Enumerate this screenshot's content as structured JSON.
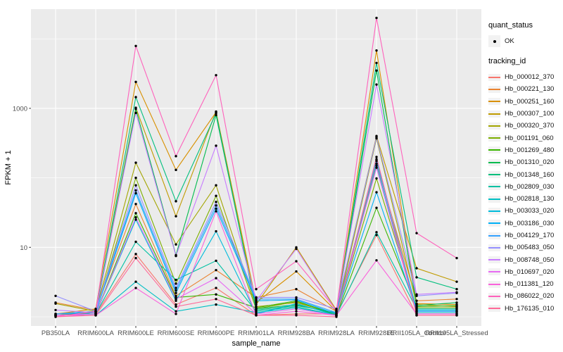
{
  "figure": {
    "panel_bg": "#EBEBEB",
    "grid_color": "#FFFFFF",
    "tick_text_color": "#4D4D4D",
    "title_text_color": "#000000",
    "point_color": "#000000",
    "legend_key_bg": "#F2F2F2"
  },
  "axes": {
    "x_title": "sample_name",
    "y_title": "FPKM + 1",
    "y_tick_labels": [
      "10",
      "1000"
    ],
    "y_tick_values": [
      10,
      1000
    ],
    "y_minor_values": [
      1,
      100,
      10000
    ]
  },
  "legend": {
    "quant_status": {
      "title": "quant_status",
      "items": [
        {
          "label": "OK",
          "symbol": "point"
        }
      ]
    },
    "tracking_id": {
      "title": "tracking_id"
    }
  },
  "chart_data": {
    "type": "line",
    "title": "",
    "xlabel": "sample_name",
    "ylabel": "FPKM + 1",
    "y_scale": "log10",
    "ylim": [
      1,
      30000
    ],
    "grid": true,
    "legend_position": "right",
    "point_marker": "black dot (quant_status OK)",
    "categories": [
      "PB350LA",
      "RRIM600LA",
      "RRIM600LE",
      "RRIM600SE",
      "RRIM600PE",
      "RRIM901LA",
      "RRIM928BA",
      "RRIM928LA",
      "RRIM928LE",
      "RRII105LA_Control",
      "RRII105LA_Stressed"
    ],
    "series": [
      {
        "name": "Hb_000012_370",
        "color": "#F8766D",
        "values": [
          1.1,
          1.1,
          8,
          1.5,
          2.6,
          1.05,
          1.1,
          1.1,
          15,
          1.05,
          1.05
        ]
      },
      {
        "name": "Hb_000221_130",
        "color": "#EA8331",
        "values": [
          1.6,
          1.25,
          42,
          2.0,
          4.7,
          1.9,
          2.5,
          1.2,
          160,
          1.7,
          1.8
        ]
      },
      {
        "name": "Hb_000251_160",
        "color": "#D89000",
        "values": [
          1.1,
          1.3,
          2400,
          130,
          880,
          1.6,
          4.5,
          1.2,
          6800,
          1.55,
          1.5
        ]
      },
      {
        "name": "Hb_000307_100",
        "color": "#C09B00",
        "values": [
          1.1,
          1.2,
          1020,
          28,
          900,
          1.5,
          10,
          1.25,
          400,
          5.0,
          3.2
        ]
      },
      {
        "name": "Hb_000320_370",
        "color": "#A3A500",
        "values": [
          1.55,
          1.2,
          165,
          11,
          78,
          1.4,
          1.6,
          1.1,
          370,
          1.5,
          1.4
        ]
      },
      {
        "name": "Hb_001191_060",
        "color": "#7CAE00",
        "values": [
          1.05,
          1.15,
          100,
          3.0,
          55,
          1.3,
          1.65,
          1.1,
          98,
          1.35,
          1.35
        ]
      },
      {
        "name": "Hb_001269_480",
        "color": "#39B600",
        "values": [
          1.05,
          1.1,
          31,
          1.9,
          2.1,
          1.35,
          1.7,
          1.05,
          37,
          1.4,
          1.45
        ]
      },
      {
        "name": "Hb_001310_020",
        "color": "#00BB4E",
        "values": [
          1.05,
          1.1,
          980,
          7.7,
          800,
          1.3,
          1.5,
          1.1,
          3500,
          1.45,
          1.6
        ]
      },
      {
        "name": "Hb_001348_160",
        "color": "#00BF7D",
        "values": [
          1.05,
          1.15,
          1450,
          46,
          850,
          1.25,
          1.45,
          1.15,
          4500,
          3.7,
          2.5
        ]
      },
      {
        "name": "Hb_002809_030",
        "color": "#00C1A3",
        "values": [
          1.05,
          1.1,
          12,
          3.4,
          6.4,
          1.2,
          1.4,
          1.05,
          16.5,
          1.3,
          1.3
        ]
      },
      {
        "name": "Hb_002818_130",
        "color": "#00BFC4",
        "values": [
          1.05,
          1.05,
          3.2,
          1.2,
          1.5,
          1.15,
          1.35,
          1.05,
          150,
          1.15,
          1.15
        ]
      },
      {
        "name": "Hb_003033_020",
        "color": "#00BBDB",
        "values": [
          1.05,
          1.1,
          25,
          1.7,
          17,
          1.1,
          1.55,
          1.05,
          185,
          1.25,
          1.25
        ]
      },
      {
        "name": "Hb_003186_030",
        "color": "#00B0F6",
        "values": [
          1.1,
          1.15,
          60,
          2.2,
          36,
          1.7,
          1.75,
          1.1,
          62,
          1.2,
          1.2
        ]
      },
      {
        "name": "Hb_004129_170",
        "color": "#35A2FF",
        "values": [
          1.1,
          1.2,
          66,
          2.4,
          40,
          1.8,
          1.8,
          1.15,
          175,
          1.2,
          1.2
        ]
      },
      {
        "name": "Hb_005483_050",
        "color": "#9590FF",
        "values": [
          2.0,
          1.2,
          78,
          2.6,
          45,
          1.9,
          1.9,
          1.3,
          385,
          2.0,
          2.2
        ]
      },
      {
        "name": "Hb_008748_050",
        "color": "#C77CFF",
        "values": [
          1.25,
          1.15,
          860,
          7.5,
          290,
          1.7,
          9.5,
          1.2,
          2200,
          2.1,
          2.25
        ]
      },
      {
        "name": "Hb_010697_020",
        "color": "#E76BF3",
        "values": [
          1.05,
          1.1,
          27,
          1.8,
          3.6,
          1.1,
          1.3,
          1.05,
          140,
          1.1,
          1.1
        ]
      },
      {
        "name": "Hb_011381_120",
        "color": "#FA62DB",
        "values": [
          1.05,
          1.05,
          2.6,
          1.1,
          33,
          1.05,
          1.2,
          1.05,
          6.5,
          1.1,
          1.1
        ]
      },
      {
        "name": "Hb_086022_020",
        "color": "#FF62BC",
        "values": [
          1.0,
          1.2,
          7900,
          205,
          3000,
          2.5,
          6.3,
          1.25,
          20000,
          16,
          7.0
        ]
      },
      {
        "name": "Hb_176135_010",
        "color": "#FF6A98",
        "values": [
          1.0,
          1.05,
          7.0,
          1.4,
          1.8,
          1.05,
          1.05,
          1.0,
          200,
          1.05,
          1.05
        ]
      }
    ]
  }
}
